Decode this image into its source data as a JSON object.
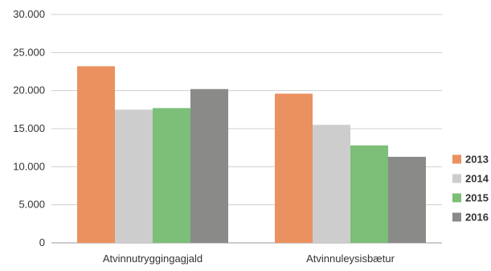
{
  "chart_data": {
    "type": "bar",
    "categories": [
      "Atvinnutryggingagjald",
      "Atvinnuleysisbætur"
    ],
    "series": [
      {
        "name": "2013",
        "values": [
          23200,
          19600
        ],
        "color": "#EB915F"
      },
      {
        "name": "2014",
        "values": [
          17500,
          15500
        ],
        "color": "#CDCDCD"
      },
      {
        "name": "2015",
        "values": [
          17700,
          12800
        ],
        "color": "#7BBF78"
      },
      {
        "name": "2016",
        "values": [
          20200,
          11300
        ],
        "color": "#8A8A89"
      }
    ],
    "ylim": [
      0,
      30000
    ],
    "yticks": [
      0,
      5000,
      10000,
      15000,
      20000,
      25000,
      30000
    ],
    "ytick_labels": [
      "0",
      "5.000",
      "10.000",
      "15.000",
      "20.000",
      "25.000",
      "30.000"
    ],
    "grid": true,
    "legend_position": "right",
    "title": "",
    "xlabel": "",
    "ylabel": ""
  }
}
